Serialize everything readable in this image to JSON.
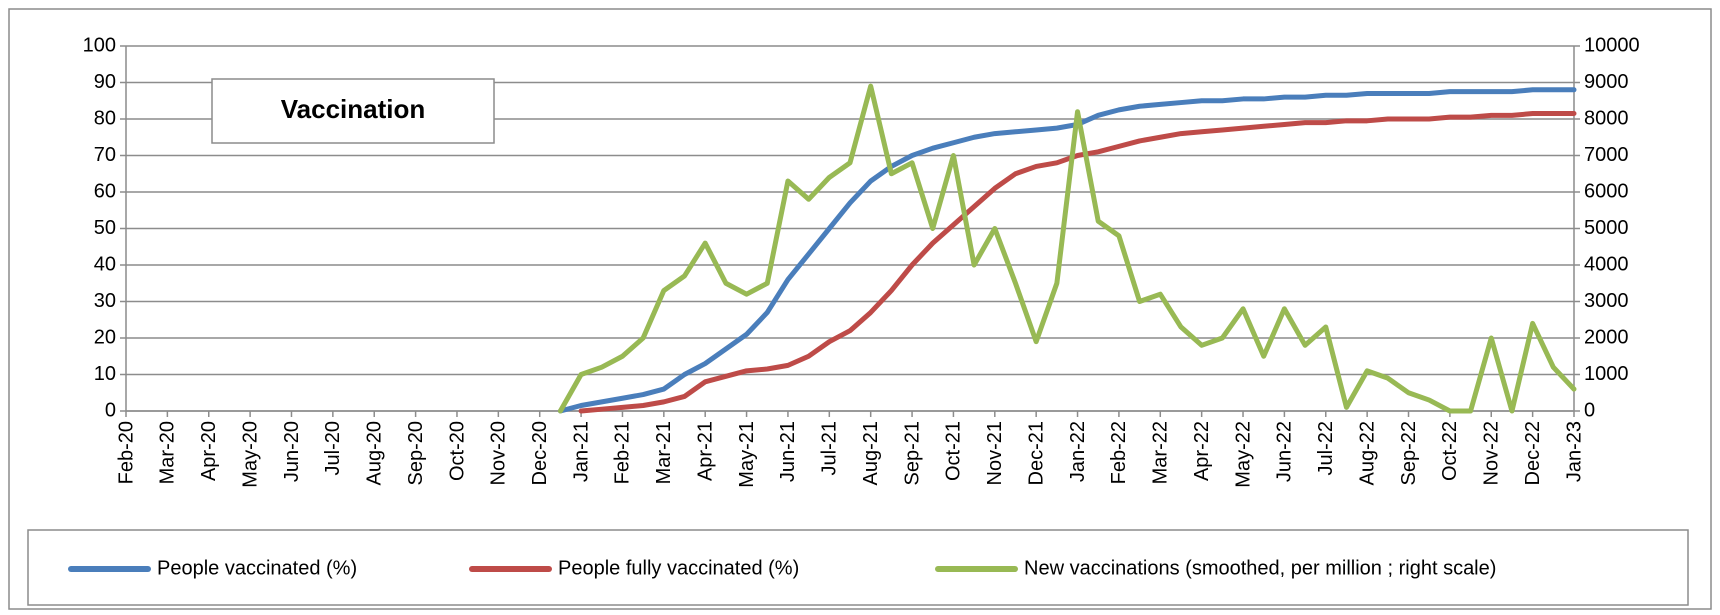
{
  "chart_data": {
    "type": "line",
    "title": "Vaccination",
    "categories": [
      "Feb-20",
      null,
      "Mar-20",
      null,
      "Apr-20",
      null,
      "May-20",
      null,
      "Jun-20",
      null,
      "Jul-20",
      null,
      "Aug-20",
      null,
      "Sep-20",
      null,
      "Oct-20",
      null,
      "Nov-20",
      null,
      "Dec-20",
      null,
      "Jan-21",
      null,
      "Feb-21",
      null,
      "Mar-21",
      null,
      "Apr-21",
      null,
      "May-21",
      null,
      "Jun-21",
      null,
      "Jul-21",
      null,
      "Aug-21",
      null,
      "Sep-21",
      null,
      "Oct-21",
      null,
      "Nov-21",
      null,
      "Dec-21",
      null,
      "Jan-22",
      null,
      "Feb-22",
      null,
      "Mar-22",
      null,
      "Apr-22",
      null,
      "May-22",
      null,
      "Jun-22",
      null,
      "Jul-22",
      null,
      "Aug-22",
      null,
      "Sep-22",
      null,
      "Oct-22",
      null,
      "Nov-22",
      null,
      "Dec-22",
      null,
      "Jan-23"
    ],
    "ylim": [
      0,
      100
    ],
    "yticks": [
      0,
      10,
      20,
      30,
      40,
      50,
      60,
      70,
      80,
      90,
      100
    ],
    "y2lim": [
      0,
      10000
    ],
    "y2ticks": [
      0,
      1000,
      2000,
      3000,
      4000,
      5000,
      6000,
      7000,
      8000,
      9000,
      10000
    ],
    "grid": true,
    "legend": "bottom",
    "series": [
      {
        "name": "People vaccinated (%)",
        "color": "#4a7ebb",
        "values": [
          null,
          null,
          null,
          null,
          null,
          null,
          null,
          null,
          null,
          null,
          null,
          null,
          null,
          null,
          null,
          null,
          null,
          null,
          null,
          null,
          null,
          0,
          1.5,
          2.5,
          3.5,
          4.5,
          6,
          10,
          13,
          17,
          21,
          27,
          36,
          43,
          50,
          57,
          63,
          67,
          70,
          72,
          73.5,
          75,
          76,
          76.5,
          77,
          77.5,
          78.5,
          81,
          82.5,
          83.5,
          84,
          84.5,
          85,
          85,
          85.5,
          85.5,
          86,
          86,
          86.5,
          86.5,
          87,
          87,
          87,
          87,
          87.5,
          87.5,
          87.5,
          87.5,
          88,
          88,
          88
        ]
      },
      {
        "name": "People fully vaccinated (%)",
        "color": "#be4b48",
        "values": [
          null,
          null,
          null,
          null,
          null,
          null,
          null,
          null,
          null,
          null,
          null,
          null,
          null,
          null,
          null,
          null,
          null,
          null,
          null,
          null,
          null,
          null,
          0,
          0.5,
          1,
          1.5,
          2.5,
          4,
          8,
          9.5,
          11,
          11.5,
          12.5,
          15,
          19,
          22,
          27,
          33,
          40,
          46,
          51,
          56,
          61,
          65,
          67,
          68,
          70,
          71,
          72.5,
          74,
          75,
          76,
          76.5,
          77,
          77.5,
          78,
          78.5,
          79,
          79,
          79.5,
          79.5,
          80,
          80,
          80,
          80.5,
          80.5,
          81,
          81,
          81.5,
          81.5,
          81.5
        ]
      },
      {
        "name": "New vaccinations (smoothed, per million ; right scale)",
        "color": "#98b954",
        "axis": "y2",
        "values": [
          null,
          null,
          null,
          null,
          null,
          null,
          null,
          null,
          null,
          null,
          null,
          null,
          null,
          null,
          null,
          null,
          null,
          null,
          null,
          null,
          null,
          0,
          1000,
          1200,
          1500,
          2000,
          3300,
          3700,
          4600,
          3500,
          3200,
          3500,
          6300,
          5800,
          6400,
          6800,
          8900,
          6500,
          6800,
          5000,
          7000,
          4000,
          5000,
          3500,
          1900,
          3500,
          8200,
          5200,
          4800,
          3000,
          3200,
          2300,
          1800,
          2000,
          2800,
          1500,
          2800,
          1800,
          2300,
          100,
          1100,
          900,
          500,
          300,
          0,
          0,
          2000,
          0,
          2400,
          1200,
          600
        ]
      }
    ]
  }
}
